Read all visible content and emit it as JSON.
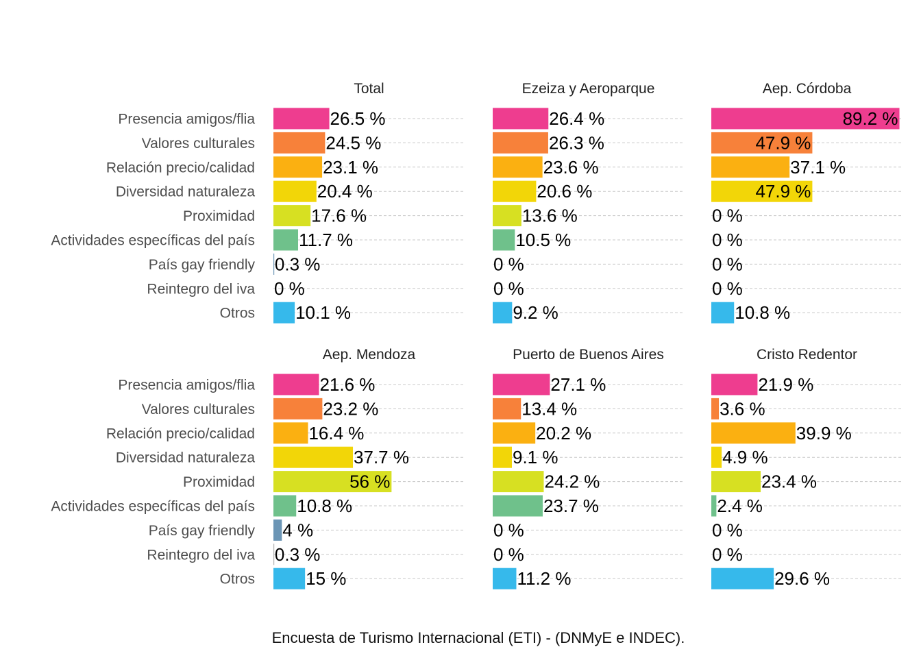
{
  "chart_data": {
    "type": "bar",
    "orientation": "horizontal",
    "caption": "Encuesta de Turismo Internacional (ETI) - (DNMyE e INDEC).",
    "categories": [
      "Presencia amigos/flia",
      "Valores culturales",
      "Relación precio/calidad",
      "Diversidad naturaleza",
      "Proximidad",
      "Actividades específicas del país",
      "País gay friendly",
      "Reintegro del iva",
      "Otros"
    ],
    "colors": [
      "#EE3D8F",
      "#F7813A",
      "#FBB011",
      "#F2D608",
      "#D7E022",
      "#6FC18B",
      "#6B95B5",
      "#B0B0B0",
      "#36B9EB"
    ],
    "value_suffix": " %",
    "xlim": [
      0,
      90
    ],
    "grid": "horizontal dashed",
    "panels": [
      {
        "title": "Total",
        "values": [
          26.5,
          24.5,
          23.1,
          20.4,
          17.6,
          11.7,
          0.3,
          0,
          10.1
        ]
      },
      {
        "title": "Ezeiza y Aeroparque",
        "values": [
          26.4,
          26.3,
          23.6,
          20.6,
          13.6,
          10.5,
          0,
          0,
          9.2
        ]
      },
      {
        "title": "Aep. Córdoba",
        "values": [
          89.2,
          47.9,
          37.1,
          47.9,
          0,
          0,
          0,
          0,
          10.8
        ]
      },
      {
        "title": "Aep. Mendoza",
        "values": [
          21.6,
          23.2,
          16.4,
          37.7,
          56,
          10.8,
          4,
          0.3,
          15
        ]
      },
      {
        "title": "Puerto de Buenos Aires",
        "values": [
          27.1,
          13.4,
          20.2,
          9.1,
          24.2,
          23.7,
          0,
          0,
          11.2
        ]
      },
      {
        "title": "Cristo Redentor",
        "values": [
          21.9,
          3.6,
          39.9,
          4.9,
          23.4,
          2.4,
          0,
          0,
          29.6
        ]
      }
    ]
  }
}
